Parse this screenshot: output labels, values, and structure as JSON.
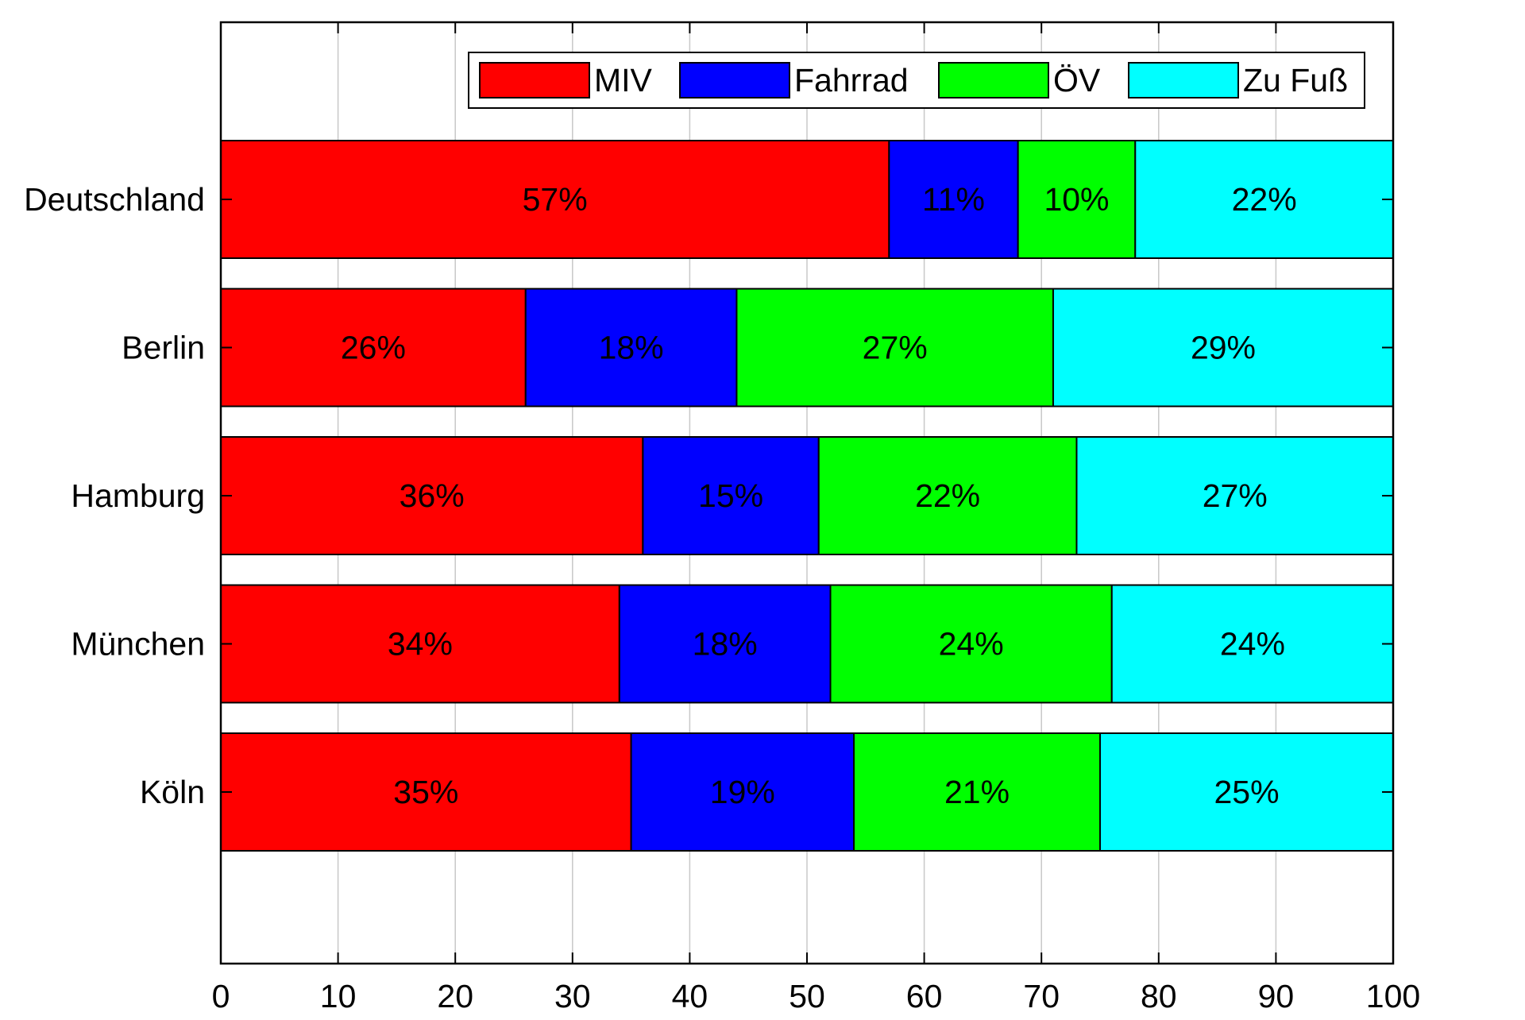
{
  "chart_data": {
    "type": "bar",
    "orientation": "horizontal",
    "stacked": true,
    "title": "",
    "xlabel": "",
    "ylabel": "",
    "categories": [
      "Deutschland",
      "Berlin",
      "Hamburg",
      "München",
      "Köln"
    ],
    "series": [
      {
        "name": "MIV",
        "color": "#ff0000",
        "values": [
          57,
          26,
          36,
          34,
          35
        ],
        "labels": [
          "57%",
          "26%",
          "36%",
          "34%",
          "35%"
        ]
      },
      {
        "name": "Fahrrad",
        "color": "#0000ff",
        "values": [
          11,
          18,
          15,
          18,
          19
        ],
        "labels": [
          "11%",
          "18%",
          "15%",
          "18%",
          "19%"
        ]
      },
      {
        "name": "ÖV",
        "color": "#00ff00",
        "values": [
          10,
          27,
          22,
          24,
          21
        ],
        "labels": [
          "10%",
          "27%",
          "22%",
          "24%",
          "21%"
        ]
      },
      {
        "name": "Zu Fuß",
        "color": "#00ffff",
        "values": [
          22,
          29,
          27,
          24,
          25
        ],
        "labels": [
          "22%",
          "29%",
          "27%",
          "24%",
          "25%"
        ]
      }
    ],
    "xlim": [
      0,
      100
    ],
    "xticks": [
      0,
      10,
      20,
      30,
      40,
      50,
      60,
      70,
      80,
      90,
      100
    ],
    "xtick_labels": [
      "0",
      "10",
      "20",
      "30",
      "40",
      "50",
      "60",
      "70",
      "80",
      "90",
      "100"
    ],
    "grid": "vertical",
    "legend": {
      "placement": "top-right",
      "orientation": "horizontal"
    }
  }
}
